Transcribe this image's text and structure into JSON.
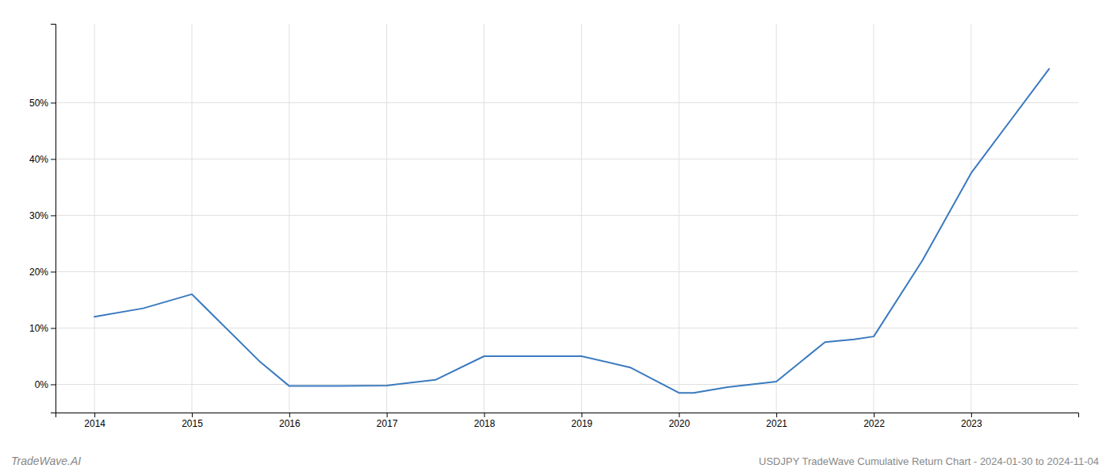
{
  "chart_data": {
    "type": "line",
    "title": "USDJPY TradeWave Cumulative Return Chart - 2024-01-30 to 2024-11-04",
    "annotations": [
      "TradeWave.AI"
    ],
    "x": [
      2014.0,
      2014.5,
      2015.0,
      2015.7,
      2016.0,
      2016.5,
      2017.0,
      2017.5,
      2018.0,
      2018.6,
      2019.0,
      2019.5,
      2020.0,
      2020.15,
      2020.5,
      2021.0,
      2021.5,
      2021.8,
      2022.0,
      2022.5,
      2023.0,
      2023.8
    ],
    "values": [
      12.0,
      13.5,
      16.0,
      4.0,
      -0.3,
      -0.3,
      -0.2,
      0.8,
      5.0,
      5.0,
      5.0,
      3.0,
      -1.5,
      -1.5,
      -0.5,
      0.5,
      7.5,
      8.0,
      8.5,
      22.0,
      37.5,
      56.0
    ],
    "color": "#3a7abf",
    "xlim": [
      2013.6,
      2024.1
    ],
    "ylim": [
      -5,
      64
    ],
    "xticks": [
      2014,
      2015,
      2016,
      2017,
      2018,
      2019,
      2020,
      2021,
      2022,
      2023
    ],
    "yticks": [
      {
        "value": 0,
        "label": "0%"
      },
      {
        "value": 10,
        "label": "10%"
      },
      {
        "value": 20,
        "label": "20%"
      },
      {
        "value": 30,
        "label": "30%"
      },
      {
        "value": 40,
        "label": "40%"
      },
      {
        "value": 50,
        "label": "50%"
      }
    ],
    "grid": true
  }
}
